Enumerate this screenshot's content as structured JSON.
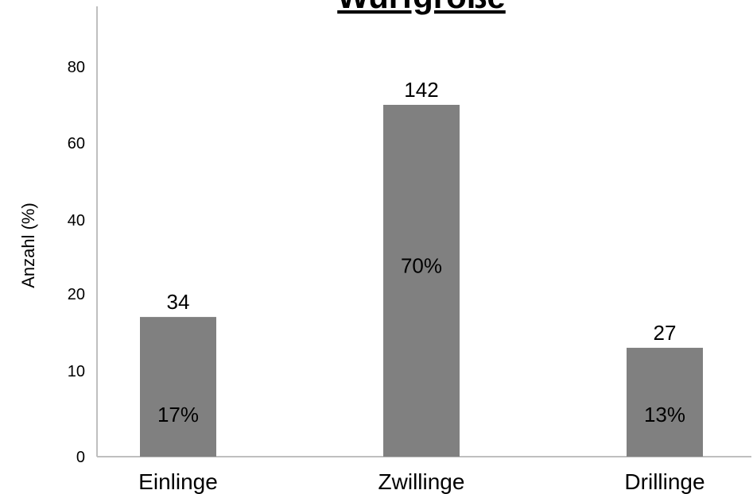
{
  "chart_data": {
    "type": "bar",
    "title": "Wurfgröße",
    "xlabel": "",
    "ylabel": "Anzahl (%)",
    "y_ticks": [
      "0",
      "10",
      "20",
      "40",
      "60",
      "80"
    ],
    "categories": [
      "Einlinge",
      "Zwillinge",
      "Drillinge"
    ],
    "values": [
      17,
      70,
      13
    ],
    "counts": [
      "34",
      "142",
      "27"
    ],
    "percent_labels": [
      "17%",
      "70%",
      "13%"
    ],
    "bar_color": "#808080",
    "grid": false,
    "legend": false
  }
}
